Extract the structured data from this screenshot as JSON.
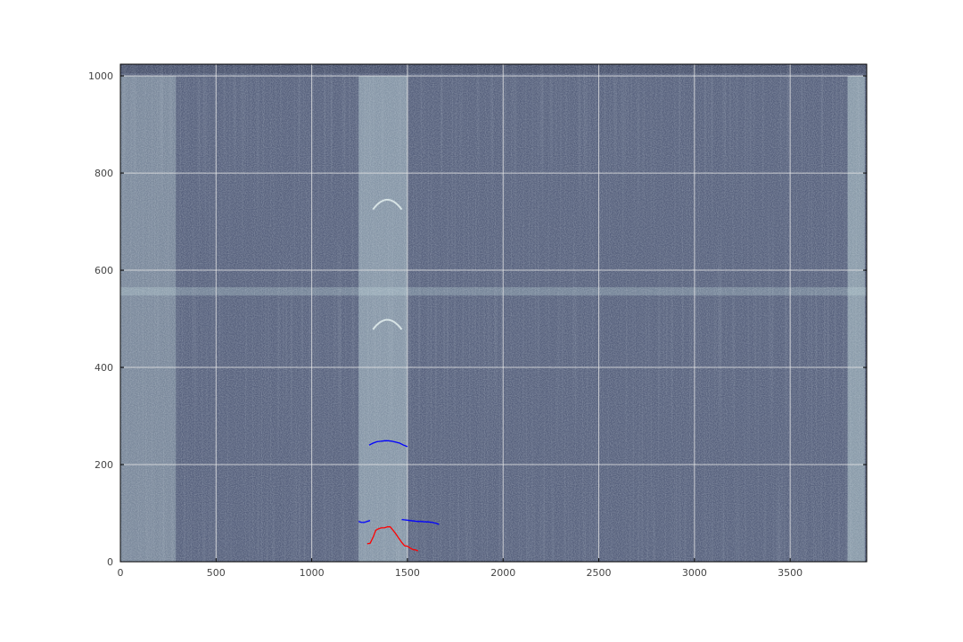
{
  "chart_data": {
    "type": "heatmap",
    "title": "",
    "xlabel": "",
    "ylabel": "",
    "xlim": [
      0,
      3900
    ],
    "ylim": [
      0,
      1024
    ],
    "x_ticks": [
      "0",
      "500",
      "1000",
      "1500",
      "2000",
      "2500",
      "3000",
      "3500"
    ],
    "y_ticks": [
      "0",
      "200",
      "400",
      "600",
      "800",
      "1000"
    ],
    "grid": true,
    "colors": {
      "background": "#56607c",
      "bright": "#c9e2e1",
      "grid": "#e6e6e6",
      "red_series": "#ff0000",
      "blue_series": "#0000ff"
    },
    "background_features": {
      "bright_column_bands": [
        {
          "x": [
            0,
            290
          ],
          "intensity": 0.55
        },
        {
          "x": [
            1245,
            1500
          ],
          "intensity": 0.75
        },
        {
          "x": [
            3800,
            3890
          ],
          "intensity": 0.8
        }
      ],
      "bright_row_bands": [
        {
          "y": [
            548,
            565
          ],
          "intensity": 0.45
        }
      ],
      "arcs": [
        {
          "x": [
            1320,
            1470
          ],
          "y_base": 725,
          "y_peak": 745
        },
        {
          "x": [
            1320,
            1470
          ],
          "y_base": 478,
          "y_peak": 498
        }
      ]
    },
    "series": [
      {
        "color": "red",
        "points": [
          [
            1290,
            37
          ],
          [
            1305,
            38
          ],
          [
            1320,
            50
          ],
          [
            1335,
            65
          ],
          [
            1350,
            68
          ],
          [
            1365,
            70
          ],
          [
            1380,
            70
          ],
          [
            1395,
            72
          ],
          [
            1410,
            72
          ],
          [
            1425,
            65
          ],
          [
            1440,
            57
          ],
          [
            1455,
            48
          ],
          [
            1470,
            40
          ],
          [
            1485,
            33
          ],
          [
            1500,
            32
          ],
          [
            1515,
            28
          ],
          [
            1530,
            25
          ],
          [
            1545,
            24
          ],
          [
            1555,
            22
          ]
        ]
      },
      {
        "color": "blue",
        "points": [
          [
            1300,
            240
          ],
          [
            1320,
            244
          ],
          [
            1340,
            247
          ],
          [
            1360,
            248
          ],
          [
            1380,
            249
          ],
          [
            1400,
            249
          ],
          [
            1420,
            248
          ],
          [
            1440,
            246
          ],
          [
            1460,
            244
          ],
          [
            1480,
            240
          ],
          [
            1500,
            237
          ]
        ]
      },
      {
        "color": "blue",
        "points": [
          [
            1245,
            83
          ],
          [
            1260,
            81
          ],
          [
            1275,
            81
          ],
          [
            1290,
            83
          ],
          [
            1305,
            85
          ]
        ]
      },
      {
        "color": "blue",
        "points": [
          [
            1470,
            87
          ],
          [
            1490,
            86
          ],
          [
            1510,
            85
          ],
          [
            1530,
            84
          ],
          [
            1550,
            83
          ],
          [
            1570,
            83
          ],
          [
            1590,
            82
          ],
          [
            1610,
            82
          ],
          [
            1630,
            81
          ],
          [
            1650,
            79
          ],
          [
            1665,
            77
          ]
        ]
      }
    ]
  }
}
